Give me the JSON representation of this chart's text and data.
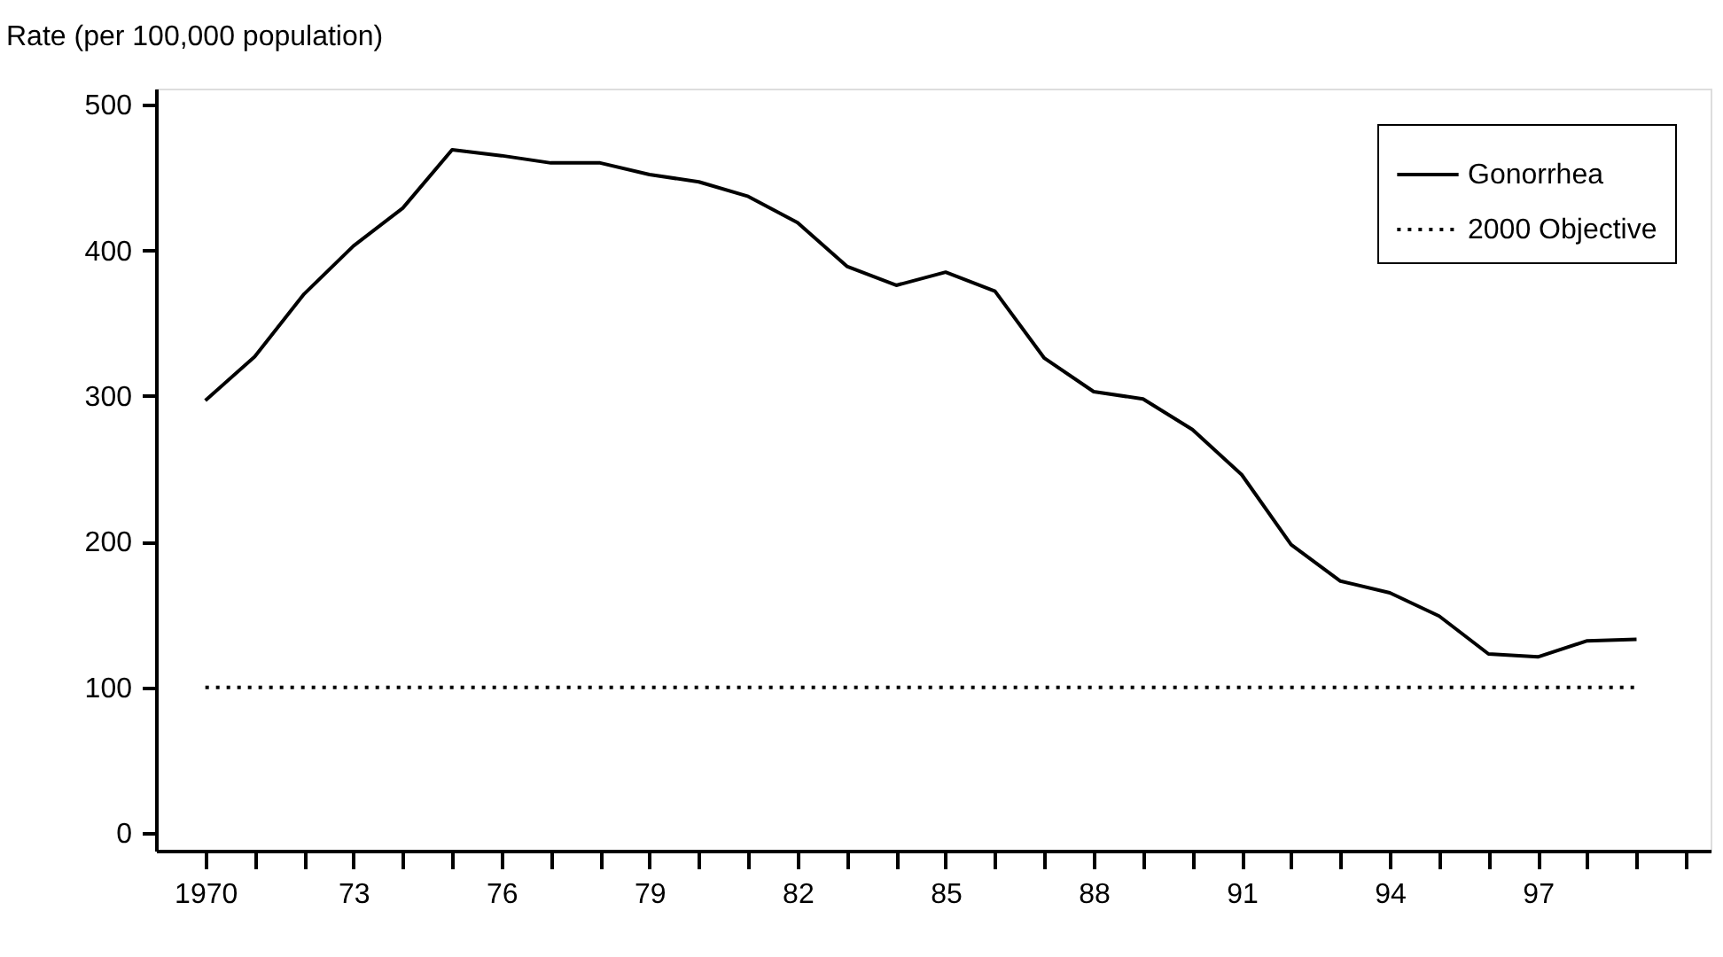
{
  "chart_data": {
    "type": "line",
    "ylabel": "Rate (per 100,000 population)",
    "x": [
      1970,
      1971,
      1972,
      1973,
      1974,
      1975,
      1976,
      1977,
      1978,
      1979,
      1980,
      1981,
      1982,
      1983,
      1984,
      1985,
      1986,
      1987,
      1988,
      1989,
      1990,
      1991,
      1992,
      1993,
      1994,
      1995,
      1996,
      1997,
      1998,
      1999
    ],
    "series": [
      {
        "name": "Gonorrhea",
        "color": "#000000",
        "line_style": "solid",
        "values": [
          297,
          327,
          370,
          403,
          429,
          469,
          465,
          460,
          460,
          452,
          447,
          437,
          419,
          389,
          376,
          385,
          372,
          326,
          303,
          298,
          277,
          246,
          198,
          173,
          165,
          149,
          123,
          121,
          132,
          133
        ]
      },
      {
        "name": "2000 Objective",
        "color": "#000000",
        "line_style": "dotted",
        "values": [
          100,
          100,
          100,
          100,
          100,
          100,
          100,
          100,
          100,
          100,
          100,
          100,
          100,
          100,
          100,
          100,
          100,
          100,
          100,
          100,
          100,
          100,
          100,
          100,
          100,
          100,
          100,
          100,
          100,
          100
        ]
      }
    ],
    "xlim": [
      1969,
      2000.5
    ],
    "xticks": [
      1970,
      {
        "value": 1971,
        "label": null
      },
      {
        "value": 1972,
        "label": null
      },
      {
        "value": 1973,
        "label": "73"
      },
      {
        "value": 1974,
        "label": null
      },
      {
        "value": 1975,
        "label": null
      },
      {
        "value": 1976,
        "label": "76"
      },
      {
        "value": 1977,
        "label": null
      },
      {
        "value": 1978,
        "label": null
      },
      {
        "value": 1979,
        "label": "79"
      },
      {
        "value": 1980,
        "label": null
      },
      {
        "value": 1981,
        "label": null
      },
      {
        "value": 1982,
        "label": "82"
      },
      {
        "value": 1983,
        "label": null
      },
      {
        "value": 1984,
        "label": null
      },
      {
        "value": 1985,
        "label": "85"
      },
      {
        "value": 1986,
        "label": null
      },
      {
        "value": 1987,
        "label": null
      },
      {
        "value": 1988,
        "label": "88"
      },
      {
        "value": 1989,
        "label": null
      },
      {
        "value": 1990,
        "label": null
      },
      {
        "value": 1991,
        "label": "91"
      },
      {
        "value": 1992,
        "label": null
      },
      {
        "value": 1993,
        "label": null
      },
      {
        "value": 1994,
        "label": "94"
      },
      {
        "value": 1995,
        "label": null
      },
      {
        "value": 1996,
        "label": null
      },
      {
        "value": 1997,
        "label": "97"
      },
      {
        "value": 1998,
        "label": null
      },
      {
        "value": 1999,
        "label": null
      },
      {
        "value": 2000,
        "label": null
      }
    ],
    "ylim": [
      -12,
      511
    ],
    "yticks": [
      0,
      100,
      200,
      300,
      400,
      500
    ],
    "grid": false,
    "legend": "top right",
    "marker": "none"
  }
}
